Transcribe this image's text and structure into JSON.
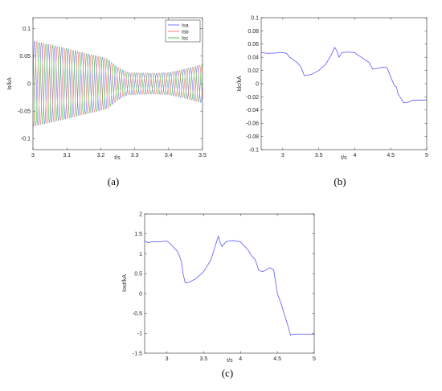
{
  "chart_data": [
    {
      "id": "a",
      "type": "line",
      "caption": "(a)",
      "xlabel": "t/s",
      "ylabel": "Is/kA",
      "xlim": [
        3,
        3.5
      ],
      "ylim": [
        -0.12,
        0.12
      ],
      "xticks": [
        "3",
        "3.1",
        "3.2",
        "3.3",
        "3.4",
        "3.5"
      ],
      "yticks": [
        "-0.1",
        "-0.05",
        "0",
        "0.05",
        "0.1"
      ],
      "legend_position": "top-right",
      "frequency_hz": 50,
      "envelope": {
        "t": [
          3.0,
          3.05,
          3.1,
          3.15,
          3.2,
          3.22,
          3.25,
          3.28,
          3.3,
          3.35,
          3.4,
          3.45,
          3.5
        ],
        "amplitude": [
          0.078,
          0.071,
          0.064,
          0.056,
          0.049,
          0.045,
          0.03,
          0.02,
          0.02,
          0.019,
          0.02,
          0.027,
          0.035
        ]
      },
      "series": [
        {
          "name": "Isa",
          "color": "#6b6bff",
          "phase_deg": 0
        },
        {
          "name": "Isb",
          "color": "#ff7060",
          "phase_deg": -120
        },
        {
          "name": "Isc",
          "color": "#40c040",
          "phase_deg": 120
        }
      ]
    },
    {
      "id": "b",
      "type": "line",
      "caption": "(b)",
      "xlabel": "t/s",
      "ylabel": "Idc/kA",
      "xlim": [
        2.7,
        5
      ],
      "ylim": [
        -0.1,
        0.1
      ],
      "xticks": [
        "3",
        "3.5",
        "4",
        "4.5",
        "5"
      ],
      "yticks": [
        "-0.1",
        "-0.08",
        "-0.06",
        "-0.04",
        "-0.02",
        "0",
        "0.02",
        "0.04",
        "0.06",
        "0.08",
        "0.1"
      ],
      "series": [
        {
          "color": "#6b6bff",
          "x": [
            2.7,
            2.8,
            3.0,
            3.05,
            3.1,
            3.2,
            3.25,
            3.3,
            3.4,
            3.5,
            3.6,
            3.68,
            3.72,
            3.75,
            3.78,
            3.82,
            3.9,
            4.0,
            4.05,
            4.12,
            4.2,
            4.25,
            4.3,
            4.4,
            4.45,
            4.5,
            4.55,
            4.58,
            4.6,
            4.65,
            4.68,
            4.75,
            4.8,
            5.0
          ],
          "y": [
            0.047,
            0.046,
            0.047,
            0.046,
            0.04,
            0.032,
            0.026,
            0.012,
            0.014,
            0.02,
            0.03,
            0.045,
            0.055,
            0.05,
            0.04,
            0.047,
            0.048,
            0.047,
            0.043,
            0.038,
            0.032,
            0.022,
            0.023,
            0.025,
            0.024,
            0.01,
            -0.003,
            -0.005,
            -0.015,
            -0.024,
            -0.029,
            -0.028,
            -0.025,
            -0.025
          ]
        }
      ]
    },
    {
      "id": "c",
      "type": "line",
      "caption": "(c)",
      "xlabel": "t/s",
      "ylabel": "Iout/kA",
      "xlim": [
        2.7,
        5
      ],
      "ylim": [
        -1.5,
        2
      ],
      "xticks": [
        "3",
        "3.5",
        "4",
        "4.5",
        "5"
      ],
      "yticks": [
        "-1.5",
        "-1",
        "-0.5",
        "0",
        "0.5",
        "1",
        "1.5",
        "2"
      ],
      "series": [
        {
          "color": "#6b6bff",
          "x": [
            2.7,
            2.75,
            2.8,
            2.9,
            3.0,
            3.05,
            3.1,
            3.15,
            3.2,
            3.22,
            3.25,
            3.3,
            3.4,
            3.5,
            3.6,
            3.65,
            3.7,
            3.72,
            3.75,
            3.78,
            3.8,
            3.85,
            3.9,
            4.0,
            4.05,
            4.1,
            4.15,
            4.2,
            4.25,
            4.3,
            4.4,
            4.45,
            4.5,
            4.55,
            4.6,
            4.65,
            4.68,
            4.7,
            4.75,
            4.8,
            5.0
          ],
          "y": [
            1.32,
            1.28,
            1.3,
            1.3,
            1.32,
            1.25,
            1.15,
            1.05,
            0.8,
            0.5,
            0.27,
            0.28,
            0.38,
            0.55,
            0.85,
            1.15,
            1.45,
            1.3,
            1.18,
            1.25,
            1.3,
            1.32,
            1.33,
            1.3,
            1.2,
            1.1,
            0.95,
            0.85,
            0.58,
            0.55,
            0.65,
            0.6,
            0.0,
            -0.25,
            -0.55,
            -0.85,
            -1.05,
            -1.03,
            -1.02,
            -1.02,
            -1.02
          ]
        }
      ]
    }
  ]
}
